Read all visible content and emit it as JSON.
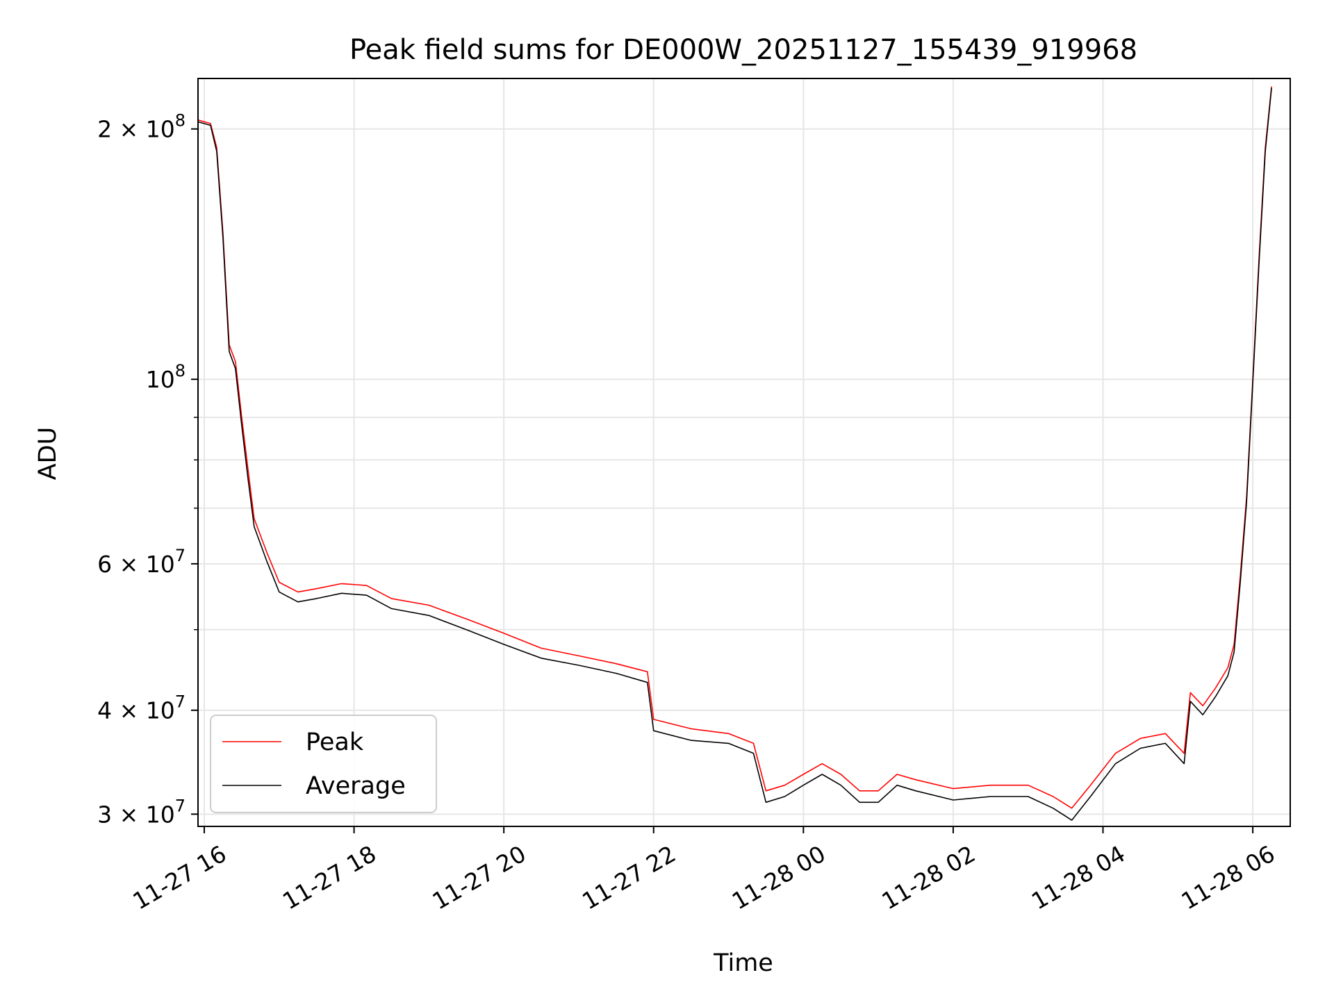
{
  "chart_data": {
    "type": "line",
    "title": "Peak field sums for DE000W_20251127_155439_919968",
    "xlabel": "Time",
    "ylabel": "ADU",
    "yscale": "log",
    "ylim": [
      29000000,
      230000000
    ],
    "xlim": [
      "2025-11-27 15:55",
      "2025-11-28 06:30"
    ],
    "grid": true,
    "legend_position": "lower-left",
    "x_ticks": [
      {
        "label": "11-27 16",
        "value": "2025-11-27 16:00"
      },
      {
        "label": "11-27 18",
        "value": "2025-11-27 18:00"
      },
      {
        "label": "11-27 20",
        "value": "2025-11-27 20:00"
      },
      {
        "label": "11-27 22",
        "value": "2025-11-27 22:00"
      },
      {
        "label": "11-28 00",
        "value": "2025-11-28 00:00"
      },
      {
        "label": "11-28 02",
        "value": "2025-11-28 02:00"
      },
      {
        "label": "11-28 04",
        "value": "2025-11-28 04:00"
      },
      {
        "label": "11-28 06",
        "value": "2025-11-28 06:00"
      }
    ],
    "y_ticks": [
      {
        "coef": "3",
        "exp": "7",
        "value": 30000000
      },
      {
        "coef": "4",
        "exp": "7",
        "value": 40000000
      },
      {
        "coef": "6",
        "exp": "7",
        "value": 60000000
      },
      {
        "coef": "",
        "exp": "8",
        "value": 100000000
      },
      {
        "coef": "2",
        "exp": "8",
        "value": 200000000
      }
    ],
    "series": [
      {
        "name": "Peak",
        "color": "#ff0000",
        "points": [
          [
            "2025-11-27 15:55",
            205000000
          ],
          [
            "2025-11-27 16:05",
            203000000
          ],
          [
            "2025-11-27 16:10",
            190000000
          ],
          [
            "2025-11-27 16:15",
            150000000
          ],
          [
            "2025-11-27 16:20",
            110000000
          ],
          [
            "2025-11-27 16:25",
            105000000
          ],
          [
            "2025-11-27 16:30",
            90000000
          ],
          [
            "2025-11-27 16:35",
            78000000
          ],
          [
            "2025-11-27 16:40",
            68000000
          ],
          [
            "2025-11-27 16:50",
            62000000
          ],
          [
            "2025-11-27 17:00",
            57000000
          ],
          [
            "2025-11-27 17:15",
            55500000
          ],
          [
            "2025-11-27 17:30",
            56000000
          ],
          [
            "2025-11-27 17:50",
            56800000
          ],
          [
            "2025-11-27 18:10",
            56500000
          ],
          [
            "2025-11-27 18:30",
            54500000
          ],
          [
            "2025-11-27 19:00",
            53500000
          ],
          [
            "2025-11-27 19:30",
            51500000
          ],
          [
            "2025-11-27 20:00",
            49500000
          ],
          [
            "2025-11-27 20:30",
            47500000
          ],
          [
            "2025-11-27 21:00",
            46500000
          ],
          [
            "2025-11-27 21:30",
            45500000
          ],
          [
            "2025-11-27 21:55",
            44500000
          ],
          [
            "2025-11-27 22:00",
            39000000
          ],
          [
            "2025-11-27 22:30",
            38000000
          ],
          [
            "2025-11-27 23:00",
            37500000
          ],
          [
            "2025-11-27 23:20",
            36500000
          ],
          [
            "2025-11-27 23:30",
            32000000
          ],
          [
            "2025-11-27 23:45",
            32500000
          ],
          [
            "2025-11-28 00:00",
            33500000
          ],
          [
            "2025-11-28 00:15",
            34500000
          ],
          [
            "2025-11-28 00:30",
            33500000
          ],
          [
            "2025-11-28 00:45",
            32000000
          ],
          [
            "2025-11-28 01:00",
            32000000
          ],
          [
            "2025-11-28 01:15",
            33500000
          ],
          [
            "2025-11-28 01:30",
            33000000
          ],
          [
            "2025-11-28 02:00",
            32200000
          ],
          [
            "2025-11-28 02:30",
            32500000
          ],
          [
            "2025-11-28 03:00",
            32500000
          ],
          [
            "2025-11-28 03:20",
            31500000
          ],
          [
            "2025-11-28 03:35",
            30500000
          ],
          [
            "2025-11-28 03:50",
            32500000
          ],
          [
            "2025-11-28 04:10",
            35500000
          ],
          [
            "2025-11-28 04:30",
            37000000
          ],
          [
            "2025-11-28 04:50",
            37500000
          ],
          [
            "2025-11-28 05:05",
            35500000
          ],
          [
            "2025-11-28 05:10",
            42000000
          ],
          [
            "2025-11-28 05:20",
            40500000
          ],
          [
            "2025-11-28 05:30",
            42500000
          ],
          [
            "2025-11-28 05:40",
            45000000
          ],
          [
            "2025-11-28 05:45",
            48000000
          ],
          [
            "2025-11-28 05:50",
            58000000
          ],
          [
            "2025-11-28 05:55",
            72000000
          ],
          [
            "2025-11-28 06:00",
            100000000
          ],
          [
            "2025-11-28 06:05",
            140000000
          ],
          [
            "2025-11-28 06:10",
            190000000
          ],
          [
            "2025-11-28 06:15",
            225000000
          ]
        ]
      },
      {
        "name": "Average",
        "color": "#000000",
        "points": [
          [
            "2025-11-27 15:55",
            204000000
          ],
          [
            "2025-11-27 16:05",
            202000000
          ],
          [
            "2025-11-27 16:10",
            188000000
          ],
          [
            "2025-11-27 16:15",
            148000000
          ],
          [
            "2025-11-27 16:20",
            108000000
          ],
          [
            "2025-11-27 16:25",
            103000000
          ],
          [
            "2025-11-27 16:30",
            88000000
          ],
          [
            "2025-11-27 16:35",
            76000000
          ],
          [
            "2025-11-27 16:40",
            66500000
          ],
          [
            "2025-11-27 16:50",
            60500000
          ],
          [
            "2025-11-27 17:00",
            55500000
          ],
          [
            "2025-11-27 17:15",
            54000000
          ],
          [
            "2025-11-27 17:30",
            54500000
          ],
          [
            "2025-11-27 17:50",
            55300000
          ],
          [
            "2025-11-27 18:10",
            55000000
          ],
          [
            "2025-11-27 18:30",
            53000000
          ],
          [
            "2025-11-27 19:00",
            52000000
          ],
          [
            "2025-11-27 19:30",
            50000000
          ],
          [
            "2025-11-27 20:00",
            48000000
          ],
          [
            "2025-11-27 20:30",
            46200000
          ],
          [
            "2025-11-27 21:00",
            45300000
          ],
          [
            "2025-11-27 21:30",
            44300000
          ],
          [
            "2025-11-27 21:55",
            43200000
          ],
          [
            "2025-11-27 22:00",
            37800000
          ],
          [
            "2025-11-27 22:30",
            36800000
          ],
          [
            "2025-11-27 23:00",
            36500000
          ],
          [
            "2025-11-27 23:20",
            35500000
          ],
          [
            "2025-11-27 23:30",
            31000000
          ],
          [
            "2025-11-27 23:45",
            31500000
          ],
          [
            "2025-11-28 00:00",
            32500000
          ],
          [
            "2025-11-28 00:15",
            33500000
          ],
          [
            "2025-11-28 00:30",
            32500000
          ],
          [
            "2025-11-28 00:45",
            31000000
          ],
          [
            "2025-11-28 01:00",
            31000000
          ],
          [
            "2025-11-28 01:15",
            32500000
          ],
          [
            "2025-11-28 01:30",
            32000000
          ],
          [
            "2025-11-28 02:00",
            31200000
          ],
          [
            "2025-11-28 02:30",
            31500000
          ],
          [
            "2025-11-28 03:00",
            31500000
          ],
          [
            "2025-11-28 03:20",
            30500000
          ],
          [
            "2025-11-28 03:35",
            29500000
          ],
          [
            "2025-11-28 03:50",
            31500000
          ],
          [
            "2025-11-28 04:10",
            34500000
          ],
          [
            "2025-11-28 04:30",
            36000000
          ],
          [
            "2025-11-28 04:50",
            36500000
          ],
          [
            "2025-11-28 05:05",
            34500000
          ],
          [
            "2025-11-28 05:10",
            41000000
          ],
          [
            "2025-11-28 05:20",
            39500000
          ],
          [
            "2025-11-28 05:30",
            41500000
          ],
          [
            "2025-11-28 05:40",
            44000000
          ],
          [
            "2025-11-28 05:45",
            47000000
          ],
          [
            "2025-11-28 05:50",
            57000000
          ],
          [
            "2025-11-28 05:55",
            71000000
          ],
          [
            "2025-11-28 06:00",
            99000000
          ],
          [
            "2025-11-28 06:05",
            138000000
          ],
          [
            "2025-11-28 06:10",
            188000000
          ],
          [
            "2025-11-28 06:15",
            224000000
          ]
        ]
      }
    ]
  }
}
